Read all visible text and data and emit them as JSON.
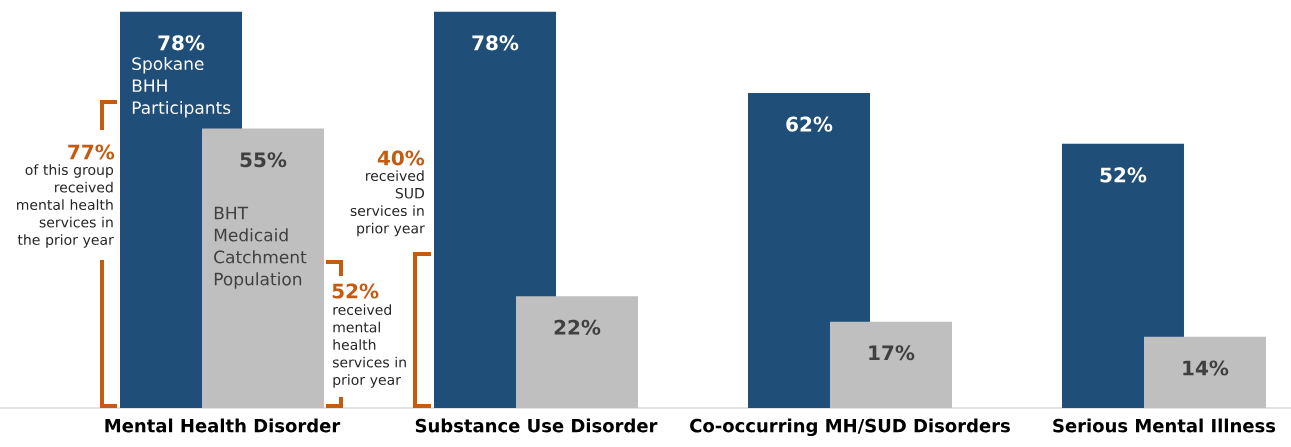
{
  "chart_data": {
    "type": "bar",
    "categories": [
      "Mental Health Disorder",
      "Substance Use Disorder",
      "Co-occurring MH/SUD Disorders",
      "Serious Mental Illness"
    ],
    "series": [
      {
        "name": "Spokane BHH Participants",
        "color": "#1f4e79",
        "values": [
          78,
          78,
          62,
          52
        ],
        "value_labels": [
          "78%",
          "78%",
          "62%",
          "52%"
        ]
      },
      {
        "name": "BHT Medicaid Catchment Population",
        "color": "#bfbfbf",
        "values": [
          55,
          22,
          17,
          14
        ],
        "value_labels": [
          "55%",
          "22%",
          "17%",
          "14%"
        ]
      }
    ],
    "annotations": [
      "77%",
      "of this group received mental health services in the prior year",
      "52%",
      "received mental health services in prior year",
      "40%",
      "received SUD services in prior year"
    ]
  }
}
